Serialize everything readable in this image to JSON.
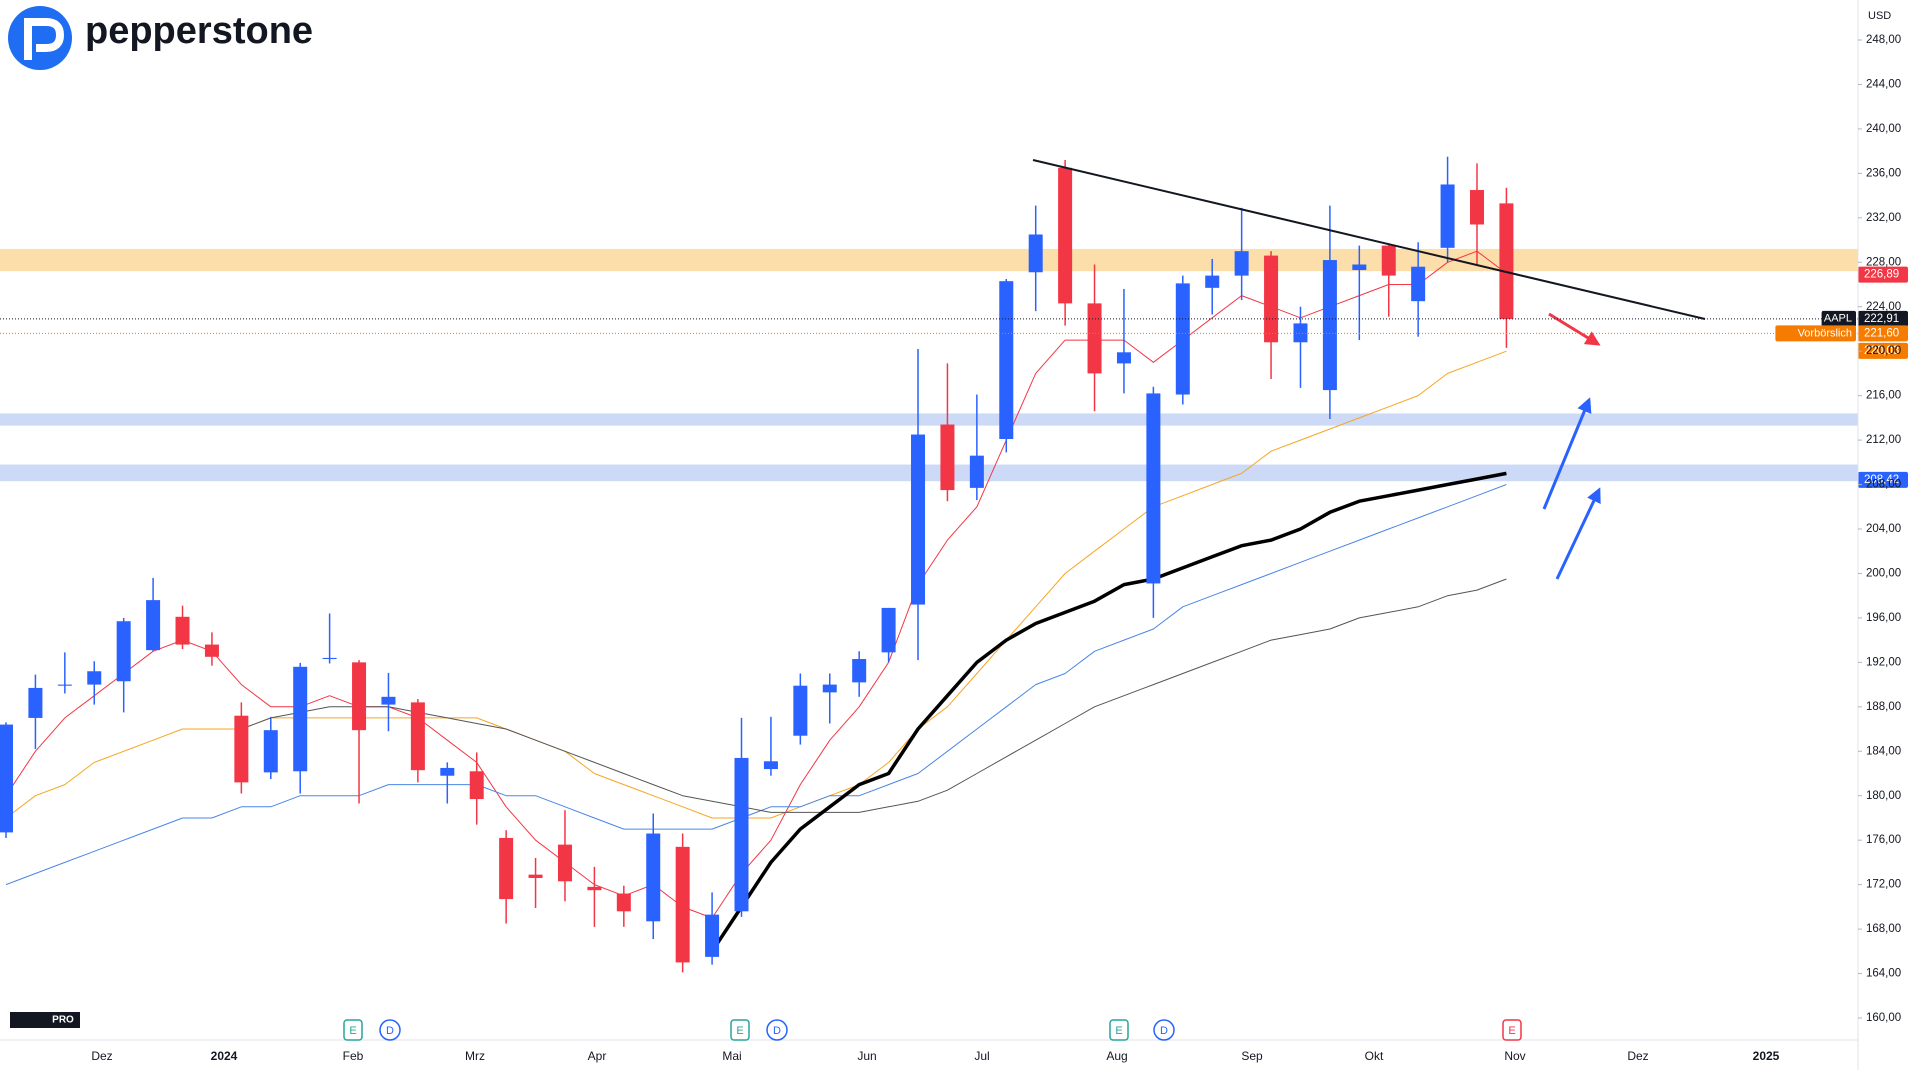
{
  "chart_data": {
    "type": "candlestick",
    "logo": "pepperstone",
    "currency": "USD",
    "badge": "PRO",
    "up_color": "#2962ff",
    "down_color": "#f23645",
    "open": [
      176.7,
      187,
      189.9,
      190,
      190.3,
      193.1,
      196.1,
      193.6,
      187.2,
      182.1,
      182.2,
      192.3,
      192,
      188.2,
      188.4,
      181.8,
      182.2,
      176.2,
      172.9,
      175.6,
      171.8,
      171.2,
      168.7,
      175.4,
      165.5,
      169.6,
      182.4,
      185.4,
      189.3,
      190.2,
      192.9,
      197.2,
      213.4,
      207.7,
      212.1,
      227.1,
      236.5,
      224.3,
      218.9,
      199.1,
      216.1,
      225.7,
      226.8,
      228.6,
      220.8,
      216.5,
      227.3,
      229.5,
      224.5,
      229.3,
      234.5,
      233.3
    ],
    "high": [
      186.6,
      190.9,
      192.9,
      192.1,
      195.99,
      199.6,
      197.1,
      194.7,
      188.4,
      187.1,
      191.95,
      196.4,
      192.2,
      191.05,
      188.7,
      183,
      183.9,
      176.9,
      174.4,
      178.7,
      173.6,
      171.9,
      178.4,
      176.6,
      171.3,
      187,
      187.1,
      191,
      191,
      193,
      196.9,
      220.2,
      218.9,
      216.1,
      226.5,
      233.1,
      237.2,
      227.8,
      225.6,
      216.8,
      226.8,
      228.3,
      232.9,
      229,
      224,
      233.1,
      229.5,
      229.6,
      229.8,
      237.5,
      236.9,
      234.7
    ],
    "low": [
      176.2,
      184.2,
      189.2,
      188.2,
      187.5,
      193,
      193.2,
      191.7,
      180.2,
      181.5,
      180.2,
      191.9,
      179.3,
      185.8,
      181.2,
      179.3,
      177.4,
      168.5,
      169.9,
      170.5,
      168.2,
      168.2,
      167.1,
      164.1,
      164.8,
      169.1,
      181.8,
      184.6,
      186.5,
      188.9,
      192,
      192.2,
      206.5,
      206.6,
      210.9,
      223.6,
      222.3,
      214.6,
      216.2,
      196,
      215.2,
      223.3,
      224.6,
      217.5,
      216.7,
      213.9,
      221,
      223.1,
      221.3,
      228,
      227.8,
      220.3
    ],
    "close": [
      186.4,
      189.7,
      190,
      191.2,
      195.7,
      197.6,
      193.6,
      192.5,
      181.2,
      185.9,
      191.6,
      192.4,
      185.9,
      188.9,
      182.3,
      182.5,
      179.7,
      170.7,
      172.6,
      172.3,
      171.5,
      169.6,
      176.6,
      165,
      169.3,
      183.4,
      183.1,
      189.9,
      190,
      192.3,
      196.9,
      212.5,
      207.5,
      210.6,
      226.3,
      230.5,
      224.3,
      218,
      219.9,
      216.2,
      226.1,
      226.8,
      229,
      220.8,
      222.5,
      228.2,
      227.8,
      226.8,
      227.6,
      235,
      231.4,
      222.9
    ],
    "ma_lines": [
      {
        "color": "#f23645",
        "width": 1,
        "values": [
          180,
          184,
          187,
          189,
          191,
          193,
          194,
          193,
          190,
          188,
          188,
          189,
          188,
          188,
          187,
          185,
          183,
          179,
          176,
          174,
          172,
          171,
          172,
          170,
          169,
          173,
          176,
          181,
          185,
          188,
          192,
          199,
          203,
          206,
          212,
          218,
          221,
          221,
          221,
          219,
          221,
          223,
          225,
          224,
          223,
          224,
          225,
          226,
          226,
          228,
          229,
          227
        ]
      },
      {
        "color": "#f5a623",
        "width": 1,
        "values": [
          178,
          180,
          181,
          183,
          184,
          185,
          186,
          186,
          186,
          187,
          187,
          187,
          187,
          187,
          187,
          187,
          187,
          186,
          185,
          184,
          182,
          181,
          180,
          179,
          178,
          178,
          178,
          179,
          180,
          181,
          183,
          186,
          188,
          191,
          194,
          197,
          200,
          202,
          204,
          206,
          207,
          208,
          209,
          211,
          212,
          213,
          214,
          215,
          216,
          218,
          219,
          220
        ]
      },
      {
        "color": "#4a86e8",
        "width": 1,
        "values": [
          172,
          173,
          174,
          175,
          176,
          177,
          178,
          178,
          179,
          179,
          180,
          180,
          180,
          181,
          181,
          181,
          181,
          180,
          180,
          179,
          178,
          177,
          177,
          177,
          177,
          178,
          179,
          179,
          180,
          180,
          181,
          182,
          184,
          186,
          188,
          190,
          191,
          193,
          194,
          195,
          197,
          198,
          199,
          200,
          201,
          202,
          203,
          204,
          205,
          206,
          207,
          208
        ]
      },
      {
        "color": "#555555",
        "width": 1,
        "values": [
          null,
          null,
          null,
          null,
          null,
          null,
          null,
          null,
          186,
          187,
          187.5,
          188,
          188,
          188,
          187.5,
          187,
          186.5,
          186,
          185,
          184,
          183,
          182,
          181,
          180,
          179.5,
          179,
          178.5,
          178.5,
          178.5,
          178.5,
          179,
          179.5,
          180.5,
          182,
          183.5,
          185,
          186.5,
          188,
          189,
          190,
          191,
          192,
          193,
          194,
          194.5,
          195,
          196,
          196.5,
          197,
          198,
          198.5,
          199.5
        ]
      },
      {
        "color": "#000000",
        "width": 3.5,
        "values": [
          null,
          null,
          null,
          null,
          null,
          null,
          null,
          null,
          null,
          null,
          null,
          null,
          null,
          null,
          null,
          null,
          null,
          null,
          null,
          null,
          null,
          null,
          null,
          null,
          166,
          170,
          174,
          177,
          179,
          181,
          182,
          186,
          189,
          192,
          194,
          195.5,
          196.5,
          197.5,
          199,
          199.5,
          200.5,
          201.5,
          202.5,
          203,
          204,
          205.5,
          206.5,
          207,
          207.5,
          208,
          208.5,
          209
        ]
      }
    ],
    "zones": [
      {
        "low": 227.2,
        "high": 229.2,
        "color": "#fbd89b"
      },
      {
        "low": 213.3,
        "high": 214.4,
        "color": "#c3d3f7"
      },
      {
        "low": 208.3,
        "high": 209.8,
        "color": "#c3d3f7"
      }
    ],
    "price_labels": [
      {
        "value": 226.89,
        "label": "226,89",
        "color": "#f23645"
      },
      {
        "value": 222.91,
        "label": "222,91",
        "tag": "AAPL",
        "color": "#131722"
      },
      {
        "value": 221.6,
        "label": "221,60",
        "tag": "Vorbörslich",
        "color": "#f57c00"
      },
      {
        "value": 220.03,
        "label": "220,03",
        "color": "#f57c00"
      },
      {
        "value": 208.42,
        "label": "208,42",
        "color": "#2962ff"
      }
    ],
    "xtick_labels": [
      "Dez",
      "2024",
      "Feb",
      "Mrz",
      "Apr",
      "Mai",
      "Jun",
      "Jul",
      "Aug",
      "Sep",
      "Okt",
      "Nov",
      "Dez",
      "2025"
    ],
    "event_markers": [
      "E",
      "D",
      "E",
      "D",
      "E",
      "D",
      "E"
    ],
    "ylim": [
      160,
      248
    ],
    "yticks": [
      {
        "value": 248,
        "label": "248,00"
      },
      {
        "value": 244,
        "label": "244,00"
      },
      {
        "value": 240,
        "label": "240,00"
      },
      {
        "value": 236,
        "label": "236,00"
      },
      {
        "value": 232,
        "label": "232,00"
      },
      {
        "value": 228,
        "label": "228,00"
      },
      {
        "value": 224,
        "label": "224,00"
      },
      {
        "value": 220,
        "label": "220,00"
      },
      {
        "value": 216,
        "label": "216,00"
      },
      {
        "value": 212,
        "label": "212,00"
      },
      {
        "value": 208,
        "label": "208,00"
      },
      {
        "value": 204,
        "label": "204,00"
      },
      {
        "value": 200,
        "label": "200,00"
      },
      {
        "value": 196,
        "label": "196,00"
      },
      {
        "value": 192,
        "label": "192,00"
      },
      {
        "value": 188,
        "label": "188,00"
      },
      {
        "value": 184,
        "label": "184,00"
      },
      {
        "value": 180,
        "label": "180,00"
      },
      {
        "value": 176,
        "label": "176,00"
      },
      {
        "value": 172,
        "label": "172,00"
      },
      {
        "value": 168,
        "label": "168,00"
      },
      {
        "value": 164,
        "label": "164,00"
      },
      {
        "value": 160,
        "label": "160,00"
      }
    ]
  }
}
